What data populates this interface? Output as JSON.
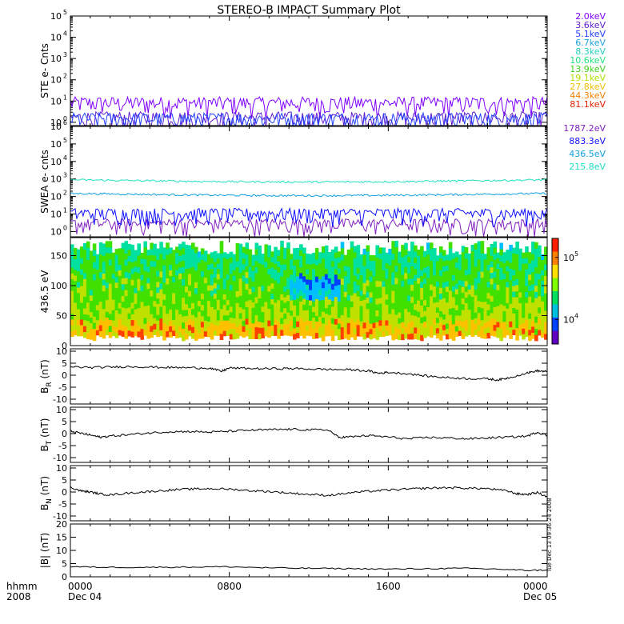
{
  "title": "STEREO-B IMPACT Summary Plot",
  "stamp": "Tue Dec 13 09:36:24 2008",
  "time_axis": {
    "row1_labels": [
      "hhmm",
      "0000",
      "0800",
      "1600",
      "0000"
    ],
    "row2_labels": [
      "2008",
      "Dec 04",
      "",
      "",
      "Dec 05"
    ],
    "major_hours": [
      0,
      8,
      16,
      24
    ],
    "range_hours": [
      0,
      24
    ]
  },
  "colors": {
    "ste": [
      "#8000ff",
      "#6020d0",
      "#2040ff",
      "#20a0e0",
      "#20d0c0",
      "#20e080",
      "#40d020",
      "#b0e000",
      "#f0c000",
      "#f08000",
      "#e02000"
    ],
    "swea": [
      "#8020c0",
      "#1010ff",
      "#10a0e0",
      "#20e0c0"
    ]
  },
  "chart_data": [
    {
      "type": "line",
      "panel": "ste",
      "ylabel": "STE e- Cnts",
      "yscale": "log",
      "ylim": [
        0.7,
        100000
      ],
      "ytick_exponents": [
        0,
        1,
        2,
        3,
        4,
        5
      ],
      "series": [
        {
          "name": "2.0keV",
          "level": 4.5
        },
        {
          "name": "3.6keV",
          "level": 0.9
        },
        {
          "name": "5.1keV",
          "level": 0.8
        },
        {
          "name": "6.7keV",
          "level": 0
        },
        {
          "name": "8.3keV",
          "level": 0
        },
        {
          "name": "10.6keV",
          "level": 0
        },
        {
          "name": "13.9keV",
          "level": 0
        },
        {
          "name": "19.1keV",
          "level": 0
        },
        {
          "name": "27.8keV",
          "level": 0
        },
        {
          "name": "44.3keV",
          "level": 0
        },
        {
          "name": "81.1keV",
          "level": 0
        }
      ]
    },
    {
      "type": "line",
      "panel": "swea",
      "ylabel": "SWEA e- cnts",
      "yscale": "log",
      "ylim": [
        0.5,
        1000000
      ],
      "ytick_exponents": [
        0,
        1,
        2,
        3,
        4,
        5,
        6
      ],
      "series": [
        {
          "name": "1787.2eV",
          "level": 1.5
        },
        {
          "name": "883.3eV",
          "level": 6
        },
        {
          "name": "436.5eV",
          "level": 150
        },
        {
          "name": "215.8eV",
          "level": 900
        }
      ]
    },
    {
      "type": "heatmap",
      "panel": "pad",
      "ylabel": "436.5 eV",
      "ylim": [
        0,
        180
      ],
      "yticks": [
        0,
        50,
        100,
        150
      ],
      "colorbar_ticks": [
        {
          "label": "10",
          "exp": "5",
          "frac": 0.82
        },
        {
          "label": "10",
          "exp": "4",
          "frac": 0.23
        }
      ]
    },
    {
      "type": "line",
      "panel": "br",
      "ylabel": "B",
      "ylabel_sub": "R",
      "ylabel_unit": "(nT)",
      "ylim": [
        -12,
        11
      ],
      "yticks": [
        -10,
        -5,
        0,
        5,
        10
      ],
      "x": [
        0,
        1,
        2,
        3,
        4,
        5,
        6,
        7,
        7.6,
        8,
        9,
        10,
        11,
        12,
        13,
        14,
        15,
        15.5,
        16,
        17,
        18,
        19,
        20,
        21,
        21.5,
        22,
        23,
        23.5,
        24
      ],
      "y": [
        3.5,
        3.2,
        3.4,
        3.6,
        3.4,
        3.2,
        3.1,
        3.0,
        1.6,
        3.0,
        2.8,
        2.7,
        2.8,
        2.6,
        2.4,
        2.3,
        1.8,
        0.8,
        1.2,
        0.6,
        -0.4,
        -1.0,
        -1.4,
        -1.5,
        -2.0,
        -1.2,
        1.0,
        1.8,
        1.5
      ]
    },
    {
      "type": "line",
      "panel": "bt",
      "ylabel": "B",
      "ylabel_sub": "T",
      "ylabel_unit": "(nT)",
      "ylim": [
        -12,
        11
      ],
      "yticks": [
        -10,
        -5,
        0,
        5,
        10
      ],
      "x": [
        0,
        0.5,
        1,
        1.5,
        2,
        3,
        4,
        5,
        6,
        7,
        8,
        9,
        10,
        11,
        12,
        13,
        13.5,
        14,
        15,
        16,
        17,
        18,
        19,
        20,
        21,
        22,
        23,
        23.5,
        24
      ],
      "y": [
        1.0,
        0.2,
        -0.6,
        -1.5,
        -1.0,
        -0.4,
        0.3,
        0.8,
        0.9,
        0.6,
        1.0,
        1.4,
        1.6,
        1.8,
        1.6,
        1.5,
        -1.6,
        -1.4,
        -0.8,
        -1.4,
        -2.2,
        -1.6,
        -1.8,
        -2.2,
        -1.8,
        -1.5,
        -1.0,
        0.6,
        -0.8
      ]
    },
    {
      "type": "line",
      "panel": "bn",
      "ylabel": "B",
      "ylabel_sub": "N",
      "ylabel_unit": "(nT)",
      "ylim": [
        -12,
        11
      ],
      "yticks": [
        -10,
        -5,
        0,
        5,
        10
      ],
      "x": [
        0,
        0.5,
        1,
        1.5,
        2,
        3,
        4,
        5,
        6,
        7,
        8,
        9,
        10,
        11,
        12,
        13,
        14,
        15,
        16,
        17,
        18,
        19,
        20,
        21,
        22,
        22.5,
        23,
        23.5,
        24
      ],
      "y": [
        2.0,
        0.5,
        0.0,
        -0.8,
        -1.2,
        -0.4,
        0.2,
        0.8,
        1.2,
        1.4,
        1.2,
        0.6,
        0.2,
        -0.4,
        -1.0,
        -1.4,
        -0.4,
        0.3,
        0.8,
        1.2,
        1.6,
        1.8,
        1.6,
        1.4,
        0.4,
        -0.8,
        -1.0,
        -0.2,
        -2.0
      ]
    },
    {
      "type": "line",
      "panel": "bmag",
      "ylabel": "|B| (nT)",
      "ylim": [
        0,
        20
      ],
      "yticks": [
        0,
        5,
        10,
        15,
        20
      ],
      "x": [
        0,
        2,
        4,
        6,
        8,
        10,
        12,
        14,
        16,
        18,
        20,
        22,
        23,
        24
      ],
      "y": [
        3.8,
        3.6,
        3.6,
        3.7,
        3.8,
        3.4,
        3.2,
        3.1,
        2.9,
        3.1,
        3.2,
        2.8,
        2.4,
        2.6
      ]
    }
  ]
}
